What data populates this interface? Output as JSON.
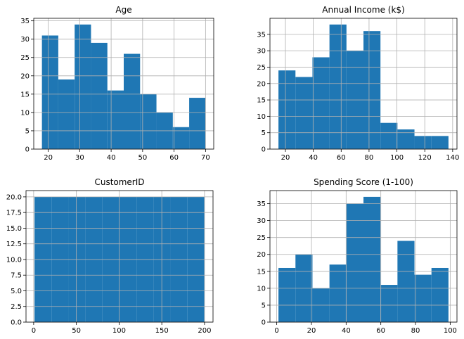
{
  "figure": {
    "bar_color": "#1f77b4",
    "grid_color": "#b0b0b0"
  },
  "chart_data": [
    {
      "type": "bar",
      "title": "Age",
      "grid": true,
      "bin_edges": [
        18,
        23.2,
        28.4,
        33.6,
        38.8,
        44,
        49.2,
        54.4,
        59.6,
        64.8,
        70
      ],
      "values": [
        31,
        19,
        34,
        29,
        16,
        26,
        15,
        10,
        6,
        14
      ],
      "xlim": [
        15.4,
        72.6
      ],
      "ylim": [
        0,
        35.7
      ],
      "xticks": [
        20,
        30,
        40,
        50,
        60,
        70
      ],
      "xtick_labels": [
        "20",
        "30",
        "40",
        "50",
        "60",
        "70"
      ],
      "yticks": [
        0,
        5,
        10,
        15,
        20,
        25,
        30,
        35
      ],
      "ytick_labels": [
        "0",
        "5",
        "10",
        "15",
        "20",
        "25",
        "30",
        "35"
      ]
    },
    {
      "type": "bar",
      "title": "Annual Income (k$)",
      "grid": true,
      "bin_edges": [
        15,
        27.2,
        39.4,
        51.6,
        63.8,
        76,
        88.2,
        100.4,
        112.6,
        124.8,
        137
      ],
      "values": [
        24,
        22,
        28,
        38,
        30,
        36,
        8,
        6,
        4,
        4
      ],
      "xlim": [
        8.9,
        143.1
      ],
      "ylim": [
        0,
        39.9
      ],
      "xticks": [
        20,
        40,
        60,
        80,
        100,
        120,
        140
      ],
      "xtick_labels": [
        "20",
        "40",
        "60",
        "80",
        "100",
        "120",
        "140"
      ],
      "yticks": [
        0,
        5,
        10,
        15,
        20,
        25,
        30,
        35
      ],
      "ytick_labels": [
        "0",
        "5",
        "10",
        "15",
        "20",
        "25",
        "30",
        "35"
      ]
    },
    {
      "type": "bar",
      "title": "CustomerID",
      "grid": true,
      "bin_edges": [
        1,
        20.9,
        40.8,
        60.7,
        80.6,
        100.5,
        120.4,
        140.3,
        160.2,
        180.1,
        200
      ],
      "values": [
        20,
        20,
        20,
        20,
        20,
        20,
        20,
        20,
        20,
        20
      ],
      "xlim": [
        -8.95,
        209.95
      ],
      "ylim": [
        0,
        21
      ],
      "xticks": [
        0,
        50,
        100,
        150,
        200
      ],
      "xtick_labels": [
        "0",
        "50",
        "100",
        "150",
        "200"
      ],
      "yticks": [
        0,
        2.5,
        5,
        7.5,
        10,
        12.5,
        15,
        17.5,
        20
      ],
      "ytick_labels": [
        "0.0",
        "2.5",
        "5.0",
        "7.5",
        "10.0",
        "12.5",
        "15.0",
        "17.5",
        "20.0"
      ]
    },
    {
      "type": "bar",
      "title": "Spending Score (1-100)",
      "grid": true,
      "bin_edges": [
        1,
        10.8,
        20.6,
        30.4,
        40.2,
        50,
        59.8,
        69.6,
        79.4,
        89.2,
        99
      ],
      "values": [
        16,
        20,
        10,
        17,
        35,
        37,
        11,
        24,
        14,
        16
      ],
      "xlim": [
        -3.9,
        103.9
      ],
      "ylim": [
        0,
        38.85
      ],
      "xticks": [
        0,
        20,
        40,
        60,
        80,
        100
      ],
      "xtick_labels": [
        "0",
        "20",
        "40",
        "60",
        "80",
        "100"
      ],
      "yticks": [
        0,
        5,
        10,
        15,
        20,
        25,
        30,
        35
      ],
      "ytick_labels": [
        "0",
        "5",
        "10",
        "15",
        "20",
        "25",
        "30",
        "35"
      ]
    }
  ]
}
